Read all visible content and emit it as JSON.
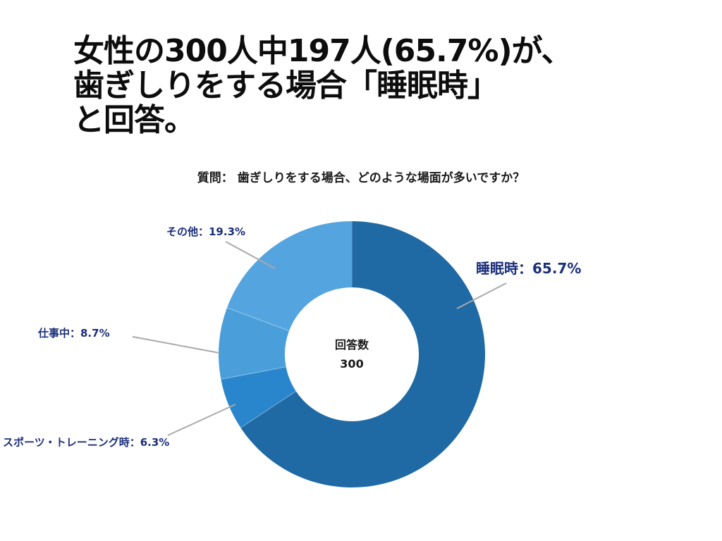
{
  "headline": {
    "line1": "女性の300人中197人(65.7%)が、",
    "line2": "歯ぎしりをする場合「睡眠時」",
    "line3": "と回答。"
  },
  "question": "質問： 歯ぎしりをする場合、どのような場面が多いですか？",
  "chart_data": {
    "type": "pie",
    "donut": true,
    "center_label": "回答数",
    "center_value": "300",
    "slices": [
      {
        "name": "睡眠時",
        "value": 65.7,
        "label": "睡眠時：65.7%",
        "color": "#1f6aa5"
      },
      {
        "name": "スポーツ・トレーニング時",
        "value": 6.3,
        "label": "スポーツ・トレーニング時：6.3%",
        "color": "#2a86cc"
      },
      {
        "name": "仕事中",
        "value": 8.7,
        "label": "仕事中：8.7%",
        "color": "#4a9fdb"
      },
      {
        "name": "その他",
        "value": 19.3,
        "label": "その他：19.3%",
        "color": "#54a5df"
      }
    ],
    "start": "12 o'clock",
    "direction": "clockwise",
    "label_color": "#1b2f7a",
    "leader_color": "#a9a9a9"
  }
}
